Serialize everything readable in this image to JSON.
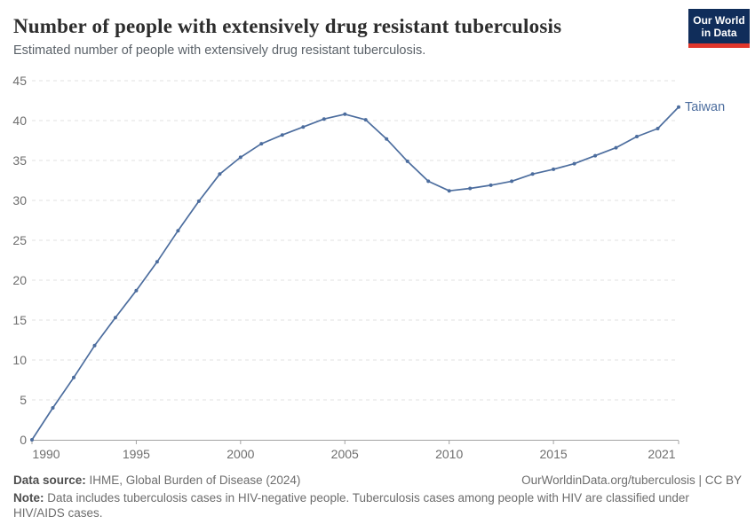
{
  "header": {
    "title": "Number of people with extensively drug resistant tuberculosis",
    "subtitle": "Estimated number of people with extensively drug resistant tuberculosis."
  },
  "logo": {
    "line1": "Our World",
    "line2": "in Data",
    "bg_color": "#102d5a",
    "stripe_color": "#e0362b"
  },
  "colors": {
    "line": "#4c6d9e",
    "grid": "#e2e2e2",
    "axis": "#a3a3a3",
    "tick_text": "#6e6e6e"
  },
  "chart_data": {
    "type": "line",
    "title": "Number of people with extensively drug resistant tuberculosis",
    "xlabel": "",
    "ylabel": "",
    "xlim": [
      1990,
      2021
    ],
    "ylim": [
      0,
      45
    ],
    "xticks": [
      1990,
      1995,
      2000,
      2005,
      2010,
      2015,
      2021
    ],
    "yticks": [
      0,
      5,
      10,
      15,
      20,
      25,
      30,
      35,
      40,
      45
    ],
    "grid": "horizontal-dashed",
    "legend_position": "end-of-line-label",
    "x": [
      1990,
      1991,
      1992,
      1993,
      1994,
      1995,
      1996,
      1997,
      1998,
      1999,
      2000,
      2001,
      2002,
      2003,
      2004,
      2005,
      2006,
      2007,
      2008,
      2009,
      2010,
      2011,
      2012,
      2013,
      2014,
      2015,
      2016,
      2017,
      2018,
      2019,
      2020,
      2021
    ],
    "series": [
      {
        "name": "Taiwan",
        "color": "#4c6d9e",
        "values": [
          0,
          4,
          7.8,
          11.8,
          15.3,
          18.7,
          22.3,
          26.2,
          29.9,
          33.3,
          35.4,
          37.1,
          38.2,
          39.2,
          40.2,
          40.8,
          40.1,
          37.7,
          34.9,
          32.4,
          31.2,
          31.5,
          31.9,
          32.4,
          33.3,
          33.9,
          34.6,
          35.6,
          36.6,
          38,
          39,
          41.7
        ]
      }
    ]
  },
  "footer": {
    "source_label": "Data source:",
    "source_value": "IHME, Global Burden of Disease (2024)",
    "credit": "OurWorldinData.org/tuberculosis | CC BY",
    "note_label": "Note:",
    "note_value": "Data includes tuberculosis cases in HIV-negative people. Tuberculosis cases among people with HIV are classified under HIV/AIDS cases."
  }
}
